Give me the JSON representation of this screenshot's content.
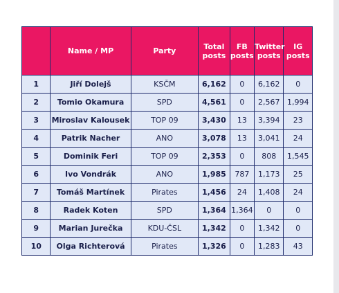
{
  "table": {
    "headers": [
      "",
      "Name / MP",
      "Party",
      "Total posts",
      "FB posts",
      "Twitter posts",
      "IG posts"
    ],
    "rows": [
      [
        "1",
        "Jiří Dolejš",
        "KSČM",
        "6,162",
        "0",
        "6,162",
        "0"
      ],
      [
        "2",
        "Tomio Okamura",
        "SPD",
        "4,561",
        "0",
        "2,567",
        "1,994"
      ],
      [
        "3",
        "Miroslav Kalousek",
        "TOP 09",
        "3,430",
        "13",
        "3,394",
        "23"
      ],
      [
        "4",
        "Patrik Nacher",
        "ANO",
        "3,078",
        "13",
        "3,041",
        "24"
      ],
      [
        "5",
        "Dominik Feri",
        "TOP 09",
        "2,353",
        "0",
        "808",
        "1,545"
      ],
      [
        "6",
        "Ivo Vondrák",
        "ANO",
        "1,985",
        "787",
        "1,173",
        "25"
      ],
      [
        "7",
        "Tomáš Martínek",
        "Pirates",
        "1,456",
        "24",
        "1,408",
        "24"
      ],
      [
        "8",
        "Radek Koten",
        "SPD",
        "1,364",
        "1,364",
        "0",
        "0"
      ],
      [
        "9",
        "Marian Jurečka",
        "KDU-ČSL",
        "1,342",
        "0",
        "1,342",
        "0"
      ],
      [
        "10",
        "Olga Richterová",
        "Pirates",
        "1,326",
        "0",
        "1,283",
        "43"
      ]
    ]
  },
  "colors": {
    "header_bg": "#ea1763",
    "row_bg": "#e1e8f7",
    "border": "#1d2a6b"
  }
}
